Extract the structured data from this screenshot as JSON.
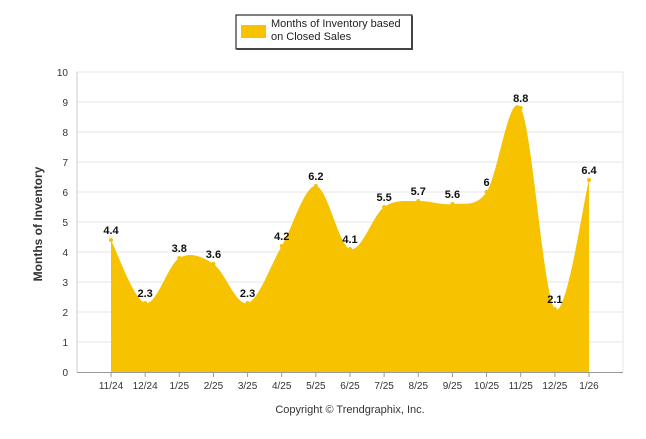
{
  "chart_data": {
    "type": "area",
    "title": "",
    "legend": {
      "label": "Months of Inventory based on Closed Sales",
      "label_lines": [
        "Months of Inventory based",
        "on Closed Sales"
      ],
      "placement": "top-center"
    },
    "xlabel": "",
    "ylabel": "Months of Inventory",
    "ylim": [
      0,
      10
    ],
    "yticks": [
      "0",
      "1",
      "2",
      "3",
      "4",
      "5",
      "6",
      "7",
      "8",
      "9",
      "10"
    ],
    "grid": true,
    "categories": [
      "11/24",
      "12/24",
      "1/25",
      "2/25",
      "3/25",
      "4/25",
      "5/25",
      "6/25",
      "7/25",
      "8/25",
      "9/25",
      "10/25",
      "11/25",
      "12/25",
      "1/26"
    ],
    "series": [
      {
        "name": "Months of Inventory based on Closed Sales",
        "values": [
          4.4,
          2.3,
          3.8,
          3.6,
          2.3,
          4.2,
          6.2,
          4.1,
          5.5,
          5.7,
          5.6,
          6,
          8.8,
          2.1,
          6.4
        ],
        "labels": [
          "4.4",
          "2.3",
          "3.8",
          "3.6",
          "2.3",
          "4.2",
          "6.2",
          "4.1",
          "5.5",
          "5.7",
          "5.6",
          "6",
          "8.8",
          "2.1",
          "6.4"
        ],
        "color": "#F7C300"
      }
    ],
    "footer": "Copyright © Trendgraphix, Inc."
  }
}
